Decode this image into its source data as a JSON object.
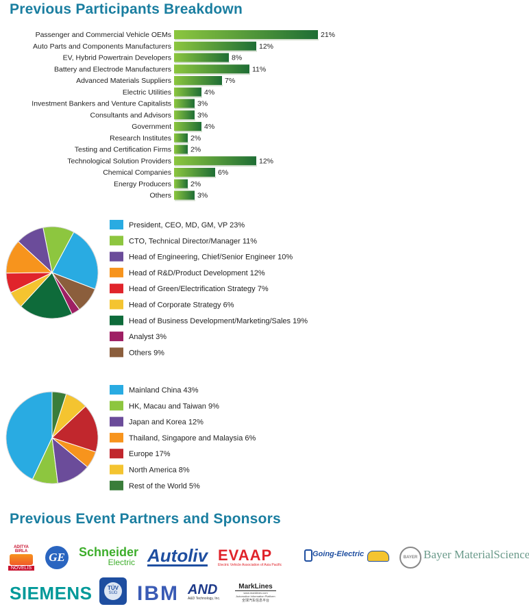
{
  "titles": {
    "participants": "Previous Participants Breakdown",
    "partners": "Previous Event Partners and Sponsors"
  },
  "chart_data": [
    {
      "type": "bar",
      "orientation": "horizontal",
      "categories": [
        "Passenger and Commercial Vehicle OEMs",
        "Auto Parts and Components Manufacturers",
        "EV, Hybrid Powertrain Developers",
        "Battery and Electrode Manufacturers",
        "Advanced Materials Suppliers",
        "Electric Utilities",
        "Investment Bankers and Venture Capitalists",
        "Consultants and Advisors",
        "Government",
        "Research Institutes",
        "Testing and Certification Firms",
        "Technological Solution Providers",
        "Chemical Companies",
        "Energy Producers",
        "Others"
      ],
      "values": [
        21,
        12,
        8,
        11,
        7,
        4,
        3,
        3,
        4,
        2,
        2,
        12,
        6,
        2,
        3
      ],
      "value_labels": [
        "21%",
        "12%",
        "8%",
        "11%",
        "7%",
        "4%",
        "3%",
        "3%",
        "4%",
        "2%",
        "2%",
        "12%",
        "6%",
        "2%",
        "3%"
      ],
      "colors": {
        "start": "#8cc63f",
        "end": "#1f6e35"
      }
    },
    {
      "type": "pie",
      "slices": [
        {
          "label": "President, CEO, MD, GM, VP",
          "pct_label": "23%",
          "value": 23,
          "color": "#29abe2"
        },
        {
          "label": "CTO, Technical Director/Manager",
          "pct_label": "11%",
          "value": 11,
          "color": "#8dc63f"
        },
        {
          "label": "Head of Engineering, Chief/Senior Engineer",
          "pct_label": "10%",
          "value": 10,
          "color": "#6b4c9a"
        },
        {
          "label": "Head of R&D/Product Development",
          "pct_label": "12%",
          "value": 12,
          "color": "#f7941d"
        },
        {
          "label": "Head of Green/Electrification Strategy",
          "pct_label": "7%",
          "value": 7,
          "color": "#e0242b"
        },
        {
          "label": "Head of Corporate Strategy",
          "pct_label": "6%",
          "value": 6,
          "color": "#f4c430"
        },
        {
          "label": "Head of Business Development/Marketing/Sales",
          "pct_label": "19%",
          "value": 19,
          "color": "#0e6b3a"
        },
        {
          "label": "Analyst",
          "pct_label": "3%",
          "value": 3,
          "color": "#9e1f63"
        },
        {
          "label": "Others",
          "pct_label": "9%",
          "value": 9,
          "color": "#8b5e3c"
        }
      ]
    },
    {
      "type": "pie",
      "slices": [
        {
          "label": "Mainland China",
          "pct_label": "43%",
          "value": 43,
          "color": "#29abe2"
        },
        {
          "label": "HK, Macau and Taiwan",
          "pct_label": "9%",
          "value": 9,
          "color": "#8dc63f"
        },
        {
          "label": "Japan and Korea",
          "pct_label": "12%",
          "value": 12,
          "color": "#6b4c9a"
        },
        {
          "label": "Thailand, Singapore and Malaysia",
          "pct_label": "6%",
          "value": 6,
          "color": "#f7941d"
        },
        {
          "label": "Europe",
          "pct_label": "17%",
          "value": 17,
          "color": "#c1272d"
        },
        {
          "label": "North America",
          "pct_label": "8%",
          "value": 8,
          "color": "#f4c430"
        },
        {
          "label": "Rest of the World",
          "pct_label": "5%",
          "value": 5,
          "color": "#3a7d3a"
        }
      ]
    }
  ],
  "logos": {
    "aditya_top": "ADITYA BIRLA",
    "aditya_bottom": "NOVELIS",
    "ge": "GE",
    "schneider_top": "Schneider",
    "schneider_bottom": "Electric",
    "autoliv": "Autoliv",
    "evaap": "EVAAP",
    "evaap_sub": "Electric Vehicle Association of Asia Pacific",
    "going_electric": "Going-Electric",
    "bayer_badge": "BAYER",
    "bayer": "Bayer MaterialScience",
    "siemens": "SIEMENS",
    "tuv_top": "TÜV",
    "tuv_bottom": "SÜD",
    "ibm": "IBM",
    "and": "AND",
    "and_sub": "A&D Technology, Inc.",
    "marklines": "MarkLines",
    "marklines_sub1": "www.marklines.com",
    "marklines_sub2": "Automotive Information Platform",
    "marklines_sub3": "全球汽车信息平台"
  },
  "colors": {
    "title": "#1a7ea0"
  }
}
